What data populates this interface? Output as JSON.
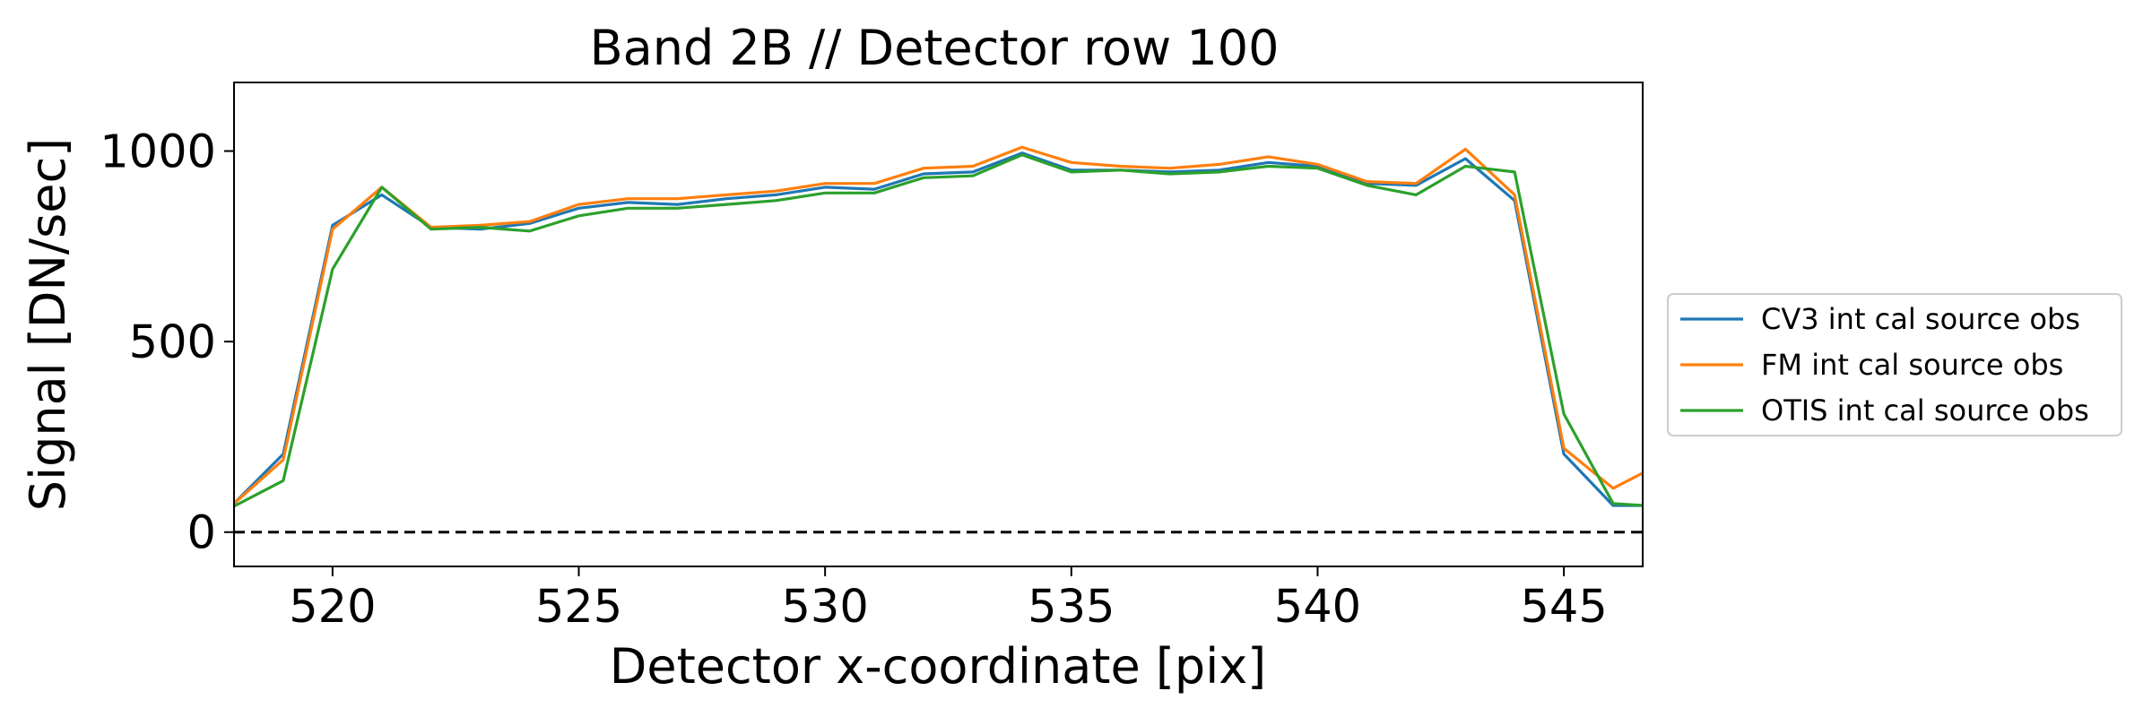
{
  "chart_data": {
    "type": "line",
    "title": "Band 2B // Detector row 100",
    "xlabel": "Detector x-coordinate [pix]",
    "ylabel": "Signal [DN/sec]",
    "xlim": [
      518,
      546.6
    ],
    "ylim": [
      -90,
      1180
    ],
    "xticks": [
      520,
      525,
      530,
      535,
      540,
      545
    ],
    "yticks": [
      0,
      500,
      1000
    ],
    "grid": false,
    "reference_line": {
      "y": 0,
      "style": "dashed",
      "color": "#000000"
    },
    "legend_position": "outside-right",
    "x": [
      518,
      519,
      520,
      521,
      522,
      523,
      524,
      525,
      526,
      527,
      528,
      529,
      530,
      531,
      532,
      533,
      534,
      535,
      536,
      537,
      538,
      539,
      540,
      541,
      542,
      543,
      544,
      545,
      546,
      546.6
    ],
    "series": [
      {
        "name": "CV3 int cal source obs",
        "color": "#1f77b4",
        "values": [
          75,
          205,
          805,
          885,
          800,
          795,
          810,
          850,
          865,
          860,
          875,
          885,
          905,
          900,
          940,
          945,
          995,
          950,
          950,
          945,
          950,
          970,
          960,
          915,
          910,
          980,
          870,
          205,
          70,
          70
        ]
      },
      {
        "name": "FM int cal source obs",
        "color": "#ff7f0e",
        "values": [
          75,
          190,
          795,
          905,
          800,
          805,
          815,
          860,
          875,
          875,
          885,
          895,
          915,
          915,
          955,
          960,
          1010,
          970,
          960,
          955,
          965,
          985,
          965,
          920,
          915,
          1005,
          885,
          220,
          115,
          155
        ]
      },
      {
        "name": "OTIS int cal source obs",
        "color": "#2ca02c",
        "values": [
          68,
          135,
          690,
          905,
          795,
          800,
          790,
          830,
          850,
          850,
          860,
          870,
          890,
          890,
          930,
          935,
          990,
          945,
          950,
          940,
          945,
          960,
          955,
          910,
          885,
          960,
          945,
          310,
          75,
          70
        ]
      }
    ]
  }
}
